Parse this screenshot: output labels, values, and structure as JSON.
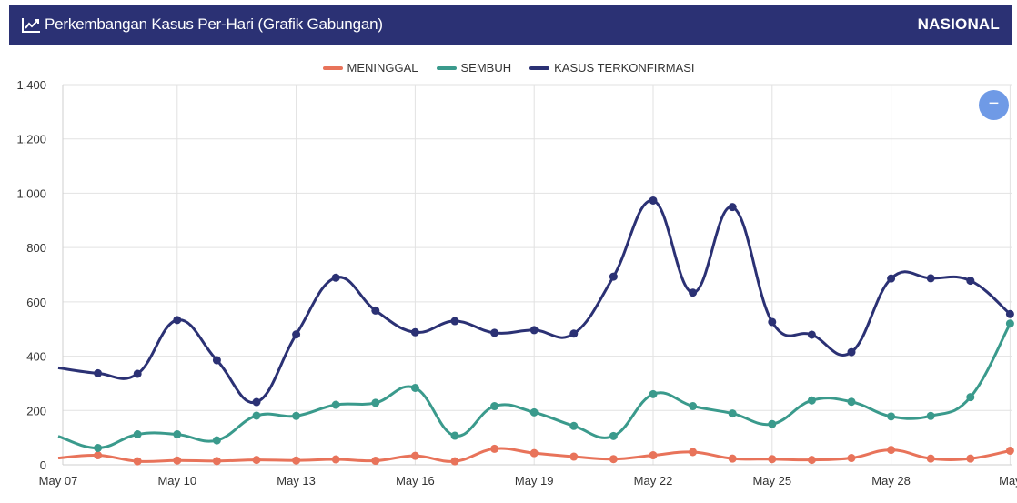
{
  "header": {
    "title": "Perkembangan Kasus Per-Hari (Grafik Gabungan)",
    "region": "NASIONAL",
    "icon": "line-chart-icon"
  },
  "zoom_button": {
    "label": "−",
    "icon": "minus-icon"
  },
  "chart_data": {
    "type": "line",
    "x": [
      "May 07",
      "May 08",
      "May 09",
      "May 10",
      "May 11",
      "May 12",
      "May 13",
      "May 14",
      "May 15",
      "May 16",
      "May 17",
      "May 18",
      "May 19",
      "May 20",
      "May 21",
      "May 22",
      "May 23",
      "May 24",
      "May 25",
      "May 26",
      "May 27",
      "May 28",
      "May 29",
      "May 30",
      "May 31"
    ],
    "x_tick_labels": [
      "May 07",
      "May 10",
      "May 13",
      "May 16",
      "May 19",
      "May 22",
      "May 25",
      "May 28",
      "May"
    ],
    "ylim": [
      0,
      1400
    ],
    "y_ticks": [
      "0",
      "200",
      "400",
      "600",
      "800",
      "1,000",
      "1,200",
      "1,400"
    ],
    "grid": true,
    "legend_position": "top-center",
    "series": [
      {
        "name": "MENINGGAL",
        "color": "#e8735a",
        "values": [
          25,
          35,
          13,
          16,
          14,
          18,
          16,
          20,
          15,
          33,
          13,
          59,
          43,
          30,
          21,
          35,
          47,
          23,
          21,
          18,
          25,
          55,
          23,
          23,
          52
        ]
      },
      {
        "name": "SEMBUH",
        "color": "#3a9a8c",
        "values": [
          105,
          62,
          112,
          112,
          90,
          181,
          180,
          221,
          228,
          283,
          107,
          216,
          193,
          143,
          106,
          260,
          216,
          189,
          150,
          237,
          232,
          178,
          180,
          249,
          520
        ]
      },
      {
        "name": "KASUS TERKONFIRMASI",
        "color": "#2b3174",
        "values": [
          357,
          337,
          335,
          533,
          385,
          231,
          480,
          689,
          568,
          488,
          529,
          486,
          496,
          483,
          693,
          973,
          634,
          949,
          526,
          479,
          415,
          686,
          687,
          678,
          555
        ]
      }
    ]
  }
}
